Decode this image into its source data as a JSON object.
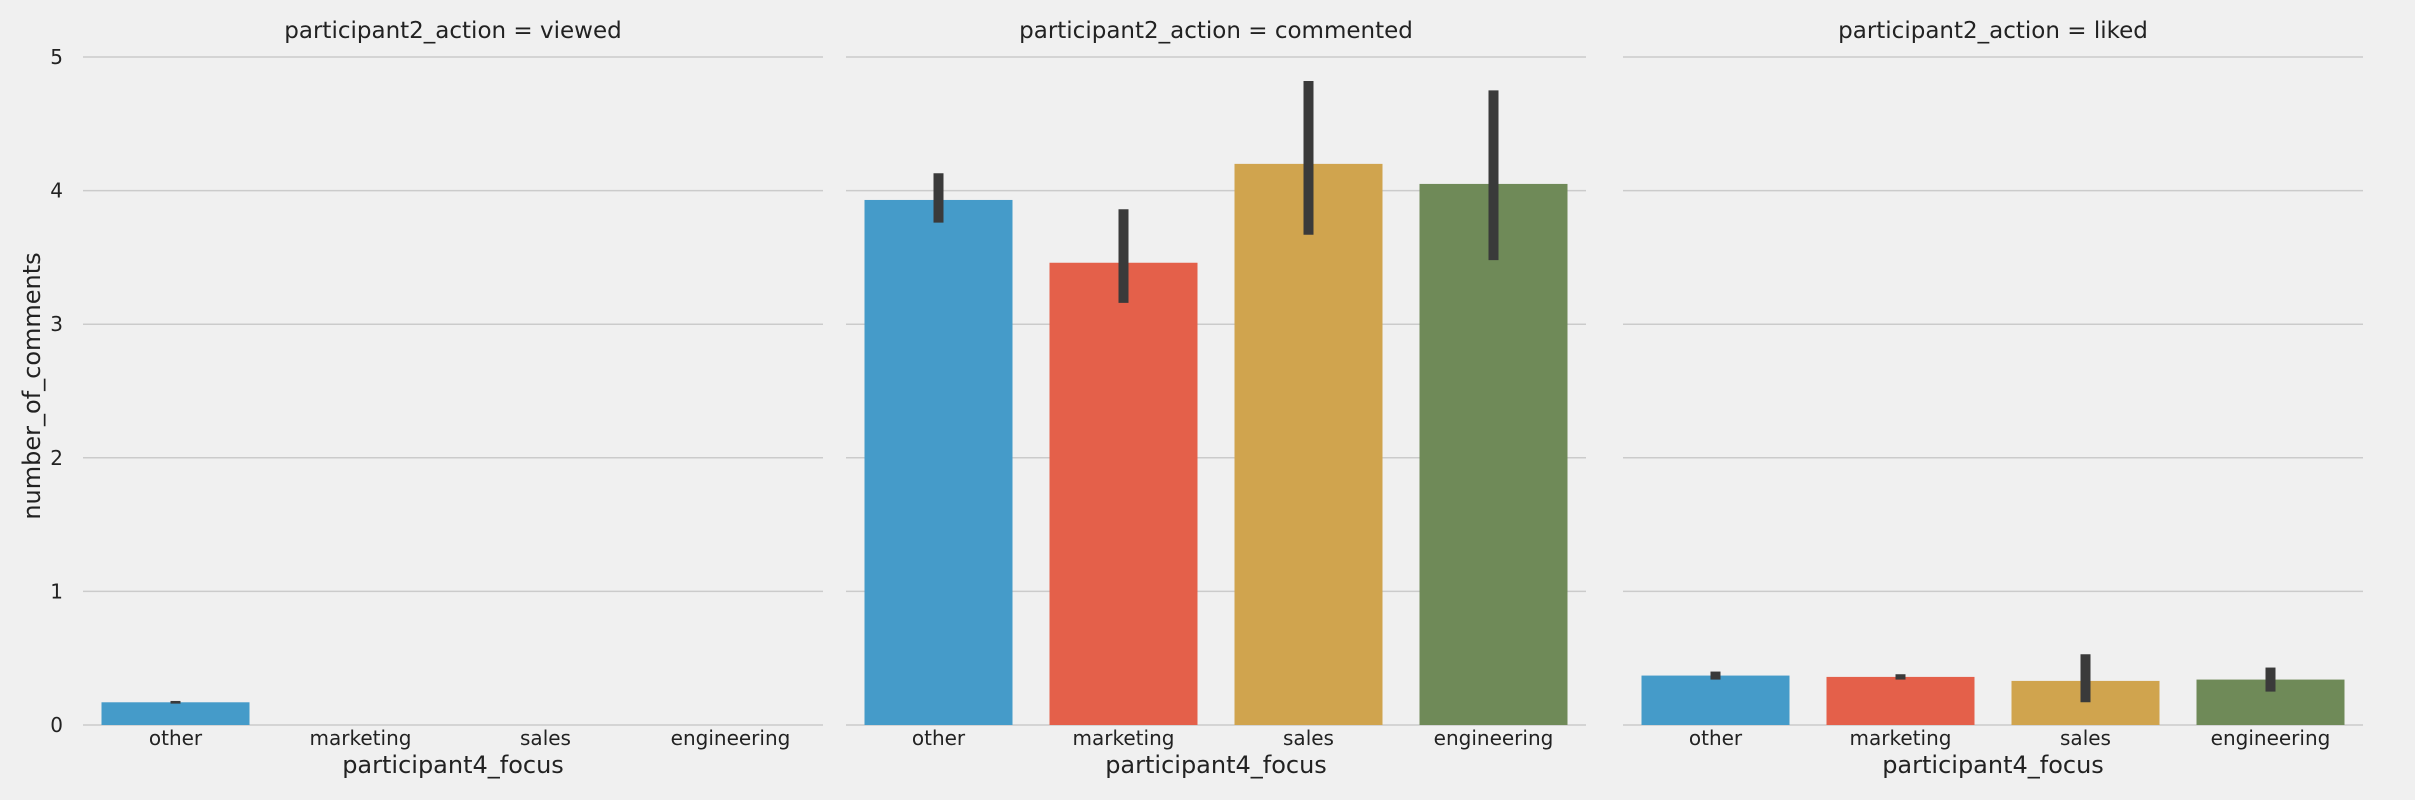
{
  "chart_data": {
    "type": "bar",
    "layout": "facet-grid",
    "facet_variable": "participant2_action",
    "xlabel": "participant4_focus",
    "ylabel": "number_of_comments",
    "ylim": [
      0,
      5
    ],
    "yticks": [
      "0",
      "1",
      "2",
      "3",
      "4",
      "5"
    ],
    "grid": "horizontal",
    "categories": [
      "other",
      "marketing",
      "sales",
      "engineering"
    ],
    "category_colors": [
      "#459bc9",
      "#e4604a",
      "#d0a44e",
      "#6f8a58"
    ],
    "error_bar_color": "#3a3a3a",
    "facets": [
      {
        "title": "participant2_action = viewed",
        "values": [
          0.17,
          0,
          0,
          0
        ],
        "ci": [
          [
            0.16,
            0.18
          ],
          null,
          null,
          null
        ]
      },
      {
        "title": "participant2_action = commented",
        "values": [
          3.93,
          3.46,
          4.2,
          4.05
        ],
        "ci": [
          [
            3.76,
            4.13
          ],
          [
            3.16,
            3.86
          ],
          [
            3.67,
            4.82
          ],
          [
            3.48,
            4.75
          ]
        ]
      },
      {
        "title": "participant2_action = liked",
        "values": [
          0.37,
          0.36,
          0.33,
          0.34
        ],
        "ci": [
          [
            0.34,
            0.4
          ],
          [
            0.34,
            0.38
          ],
          [
            0.17,
            0.53
          ],
          [
            0.25,
            0.43
          ]
        ]
      }
    ]
  }
}
